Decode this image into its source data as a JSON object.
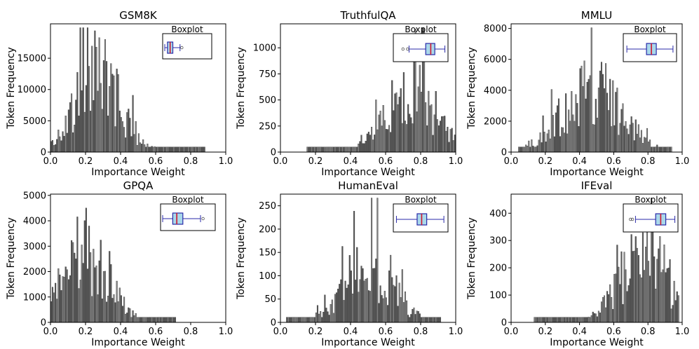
{
  "chart_data": [
    {
      "type": "histogram",
      "title": "GSM8K",
      "xlabel": "Importance Weight",
      "ylabel": "Token Frequency",
      "xlim": [
        0.0,
        1.0
      ],
      "ylim": [
        0,
        20500
      ],
      "xticks": [
        "0.0",
        "0.2",
        "0.4",
        "0.6",
        "0.8",
        "1.0"
      ],
      "yticks": [
        0,
        5000,
        10000,
        15000
      ],
      "inset_title": "Boxplot",
      "boxplot": {
        "whisker_low": 0.0,
        "q1": 0.06,
        "median": 0.12,
        "q3": 0.18,
        "whisker_high": 0.34,
        "outliers": [
          0.38
        ]
      },
      "density": {
        "mode": 0.27,
        "spread": 0.13,
        "peak": 12500,
        "low": 0.0,
        "high": 0.88
      }
    },
    {
      "type": "histogram",
      "title": "TruthfulQA",
      "xlabel": "Importance Weight",
      "ylabel": "Token Frequency",
      "xlim": [
        0.0,
        1.0
      ],
      "ylim": [
        0,
        1230
      ],
      "xticks": [
        "0.0",
        "0.2",
        "0.4",
        "0.6",
        "0.8",
        "1.0"
      ],
      "yticks": [
        0,
        250,
        500,
        750,
        1000
      ],
      "inset_title": "Boxplot",
      "boxplot": {
        "whisker_low": 0.27,
        "q1": 0.6,
        "median": 0.7,
        "q3": 0.78,
        "whisker_high": 0.98,
        "outliers": [
          0.15,
          0.24
        ]
      },
      "density": {
        "mode": 0.75,
        "spread": 0.14,
        "peak": 620,
        "low": 0.15,
        "high": 1.0
      }
    },
    {
      "type": "histogram",
      "title": "MMLU",
      "xlabel": "Importance Weight",
      "ylabel": "Token Frequency",
      "xlim": [
        0.0,
        1.0
      ],
      "ylim": [
        0,
        8300
      ],
      "xticks": [
        "0.0",
        "0.2",
        "0.4",
        "0.6",
        "0.8",
        "1.0"
      ],
      "yticks": [
        0,
        2000,
        4000,
        6000,
        8000
      ],
      "inset_title": "Boxplot",
      "boxplot": {
        "whisker_low": 0.03,
        "q1": 0.43,
        "median": 0.53,
        "q3": 0.63,
        "whisker_high": 0.97,
        "outliers": []
      },
      "density": {
        "mode": 0.47,
        "spread": 0.17,
        "peak": 4200,
        "low": 0.04,
        "high": 0.94
      }
    },
    {
      "type": "histogram",
      "title": "GPQA",
      "xlabel": "Importance Weight",
      "ylabel": "Token Frequency",
      "xlim": [
        0.0,
        1.0
      ],
      "ylim": [
        0,
        5050
      ],
      "xticks": [
        "0.0",
        "0.2",
        "0.4",
        "0.6",
        "0.8",
        "1.0"
      ],
      "yticks": [
        0,
        1000,
        2000,
        3000,
        4000,
        5000
      ],
      "inset_title": "Boxplot",
      "boxplot": {
        "whisker_low": 0.0,
        "q1": 0.2,
        "median": 0.28,
        "q3": 0.4,
        "whisker_high": 0.75,
        "outliers": [
          0.8
        ]
      },
      "density": {
        "mode": 0.2,
        "spread": 0.13,
        "peak": 2900,
        "low": 0.0,
        "high": 0.72
      }
    },
    {
      "type": "histogram",
      "title": "HumanEval",
      "xlabel": "Importance Weight",
      "ylabel": "Token Frequency",
      "xlim": [
        0.0,
        1.0
      ],
      "ylim": [
        0,
        275
      ],
      "xticks": [
        "0.0",
        "0.2",
        "0.4",
        "0.6",
        "0.8",
        "1.0"
      ],
      "yticks": [
        0,
        50,
        100,
        150,
        200,
        250
      ],
      "inset_title": "Boxplot",
      "boxplot": {
        "whisker_low": 0.02,
        "q1": 0.43,
        "median": 0.52,
        "q3": 0.62,
        "whisker_high": 0.96,
        "outliers": []
      },
      "density": {
        "mode": 0.5,
        "spread": 0.14,
        "peak": 125,
        "low": 0.03,
        "high": 0.92
      }
    },
    {
      "type": "histogram",
      "title": "IFEval",
      "xlabel": "Importance Weight",
      "ylabel": "Token Frequency",
      "xlim": [
        0.0,
        1.0
      ],
      "ylim": [
        0,
        470
      ],
      "xticks": [
        "0.0",
        "0.2",
        "0.4",
        "0.6",
        "0.8",
        "1.0"
      ],
      "yticks": [
        0,
        100,
        200,
        300,
        400
      ],
      "inset_title": "Boxplot",
      "boxplot": {
        "whisker_low": 0.2,
        "q1": 0.6,
        "median": 0.7,
        "q3": 0.8,
        "whisker_high": 0.98,
        "outliers": [
          0.1,
          0.14
        ]
      },
      "density": {
        "mode": 0.78,
        "spread": 0.14,
        "peak": 260,
        "low": 0.13,
        "high": 0.98
      }
    }
  ]
}
